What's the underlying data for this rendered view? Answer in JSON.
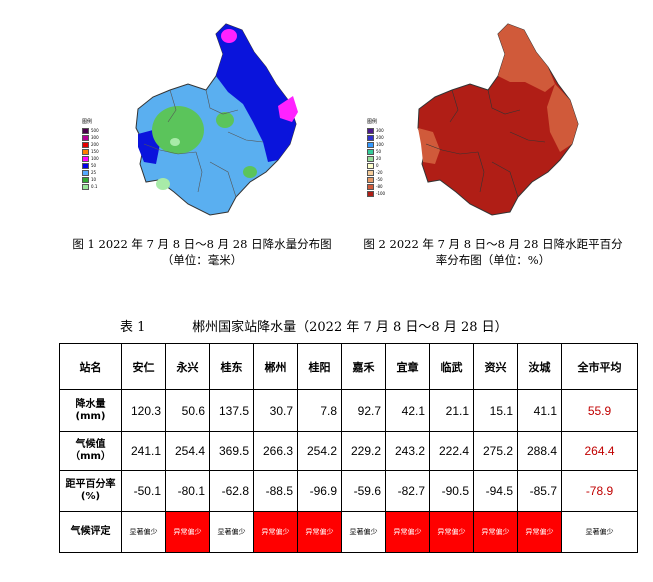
{
  "figure1": {
    "caption": "图 1 2022 年 7 月 8 日～8 月 28 日降水量分布图",
    "unit": "（单位：毫米）",
    "legend_title": "图例",
    "legend": [
      {
        "label": "500",
        "color": "#4b004b"
      },
      {
        "label": "300",
        "color": "#b40096"
      },
      {
        "label": "200",
        "color": "#e60000"
      },
      {
        "label": "150",
        "color": "#ff7f00"
      },
      {
        "label": "100",
        "color": "#ff00ff"
      },
      {
        "label": "50",
        "color": "#0000e6"
      },
      {
        "label": "25",
        "color": "#55aaff"
      },
      {
        "label": "10",
        "color": "#33aa33"
      },
      {
        "label": "0.1",
        "color": "#99e699"
      }
    ]
  },
  "figure2": {
    "caption": "图 2 2022 年 7 月 8 日～8 月 28 日降水距平百分",
    "caption2": "率分布图（单位：%）",
    "legend_title": "图例",
    "legend": [
      {
        "label": "300",
        "color": "#4b1a8c"
      },
      {
        "label": "200",
        "color": "#3333cc"
      },
      {
        "label": "100",
        "color": "#3399ff"
      },
      {
        "label": "50",
        "color": "#33cc99"
      },
      {
        "label": "20",
        "color": "#99dd99"
      },
      {
        "label": "0",
        "color": "#ffffcc"
      },
      {
        "label": "-20",
        "color": "#f5cc99"
      },
      {
        "label": "-50",
        "color": "#e69966"
      },
      {
        "label": "-80",
        "color": "#d05a3a"
      },
      {
        "label": "-100",
        "color": "#b01e16"
      }
    ]
  },
  "table": {
    "label": "表 1",
    "title": "郴州国家站降水量（2022 年 7 月 8 日～8 月 28 日）",
    "header_label": "站名",
    "stations": [
      "安仁",
      "永兴",
      "桂东",
      "郴州",
      "桂阳",
      "嘉禾",
      "宜章",
      "临武",
      "资兴",
      "汝城",
      "全市平均"
    ],
    "rows": [
      {
        "label": "降水量(mm)",
        "values": [
          "120.3",
          "50.6",
          "137.5",
          "30.7",
          "7.8",
          "92.7",
          "42.1",
          "21.1",
          "15.1",
          "41.1",
          "55.9"
        ]
      },
      {
        "label": "气候值（mm）",
        "values": [
          "241.1",
          "254.4",
          "369.5",
          "266.3",
          "254.2",
          "229.2",
          "243.2",
          "222.4",
          "275.2",
          "288.4",
          "264.4"
        ]
      },
      {
        "label": "距平百分率(%)",
        "values": [
          "-50.1",
          "-80.1",
          "-62.8",
          "-88.5",
          "-96.9",
          "-59.6",
          "-82.7",
          "-90.5",
          "-94.5",
          "-85.7",
          "-78.9"
        ]
      }
    ],
    "eval_label": "气候评定",
    "evaluations": [
      {
        "text": "显著偏少",
        "highlight": false
      },
      {
        "text": "异常偏少",
        "highlight": true
      },
      {
        "text": "显著偏少",
        "highlight": false
      },
      {
        "text": "异常偏少",
        "highlight": true
      },
      {
        "text": "异常偏少",
        "highlight": true
      },
      {
        "text": "显著偏少",
        "highlight": false
      },
      {
        "text": "异常偏少",
        "highlight": true
      },
      {
        "text": "异常偏少",
        "highlight": true
      },
      {
        "text": "异常偏少",
        "highlight": true
      },
      {
        "text": "异常偏少",
        "highlight": true
      },
      {
        "text": "显著偏少",
        "highlight": false
      }
    ]
  }
}
